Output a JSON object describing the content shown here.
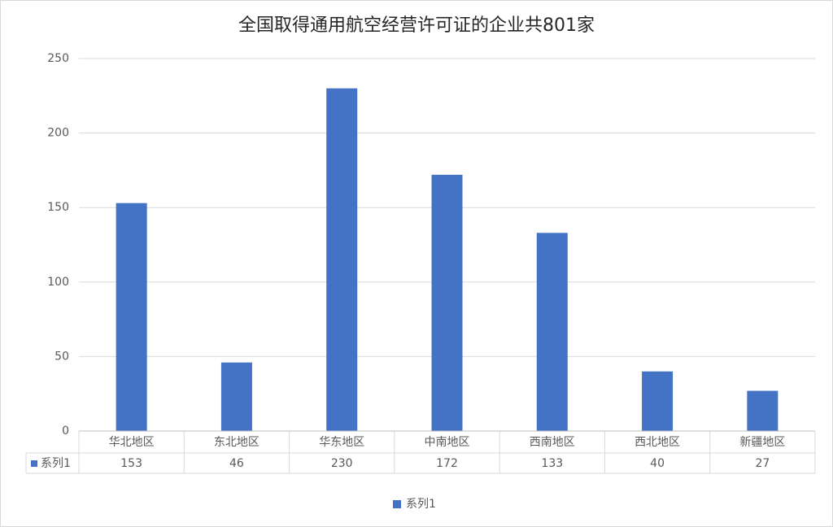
{
  "chart_data": {
    "type": "bar",
    "title": "全国取得通用航空经营许可证的企业共801家",
    "categories": [
      "华北地区",
      "东北地区",
      "华东地区",
      "中南地区",
      "西南地区",
      "西北地区",
      "新疆地区"
    ],
    "series": [
      {
        "name": "系列1",
        "color": "#4472c4",
        "values": [
          153,
          46,
          230,
          172,
          133,
          40,
          27
        ]
      }
    ],
    "ylim": [
      0,
      250
    ],
    "yticks": [
      0,
      50,
      100,
      150,
      200,
      250
    ],
    "grid": true,
    "data_table": true,
    "legend": "bottom"
  }
}
